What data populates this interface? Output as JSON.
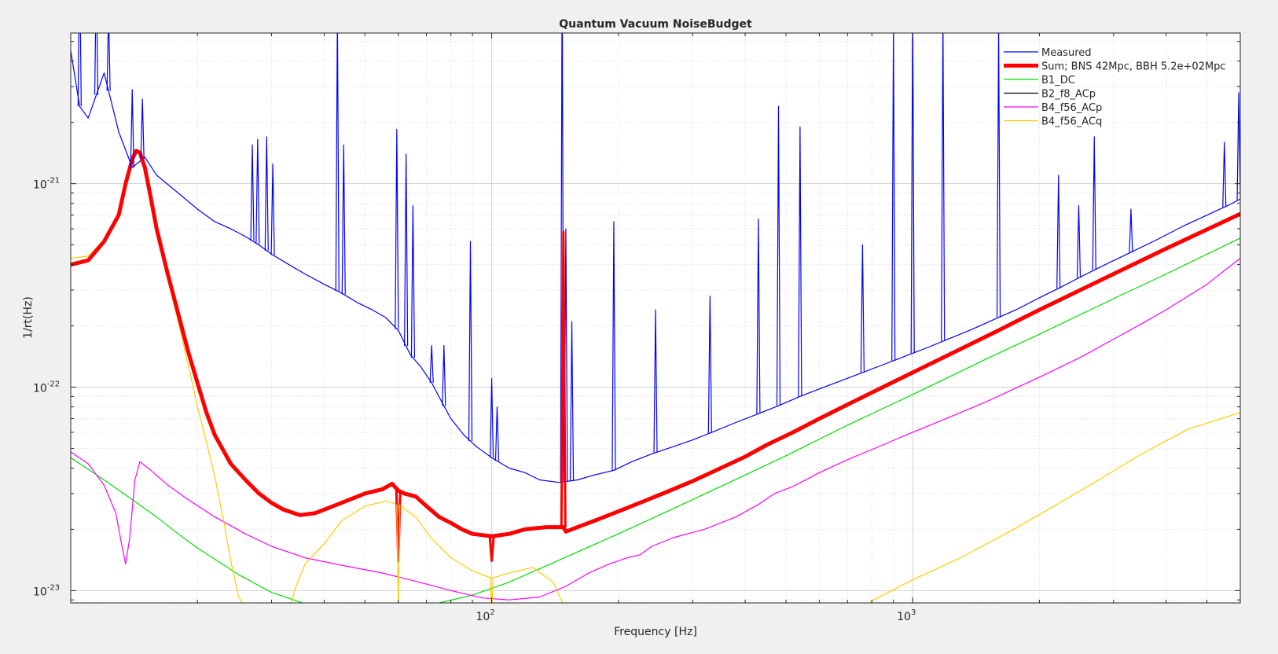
{
  "chart_data": {
    "type": "line",
    "title": "Quantum Vacuum NoiseBudget",
    "xlabel": "Frequency [Hz]",
    "ylabel": "1/rt(Hz)",
    "xscale": "log",
    "yscale": "log",
    "xlim": [
      10,
      6000
    ],
    "ylim": [
      8.7e-24,
      5.5e-21
    ],
    "grid": "on (major and minor)",
    "legend_position": "top-right",
    "x_ticks": [
      {
        "value": 100,
        "base": "10",
        "exp": "2"
      },
      {
        "value": 1000,
        "base": "10",
        "exp": "3"
      }
    ],
    "y_ticks": [
      {
        "value": 1e-21,
        "base": "10",
        "exp": "-21"
      },
      {
        "value": 1e-22,
        "base": "10",
        "exp": "-22"
      },
      {
        "value": 1e-23,
        "base": "10",
        "exp": "-23"
      }
    ],
    "series": [
      {
        "name": "Measured",
        "color": "#0000ff",
        "width": 1.2,
        "points": [
          [
            10,
            4.5e-21
          ],
          [
            10.5,
            2.4e-21
          ],
          [
            11,
            2.1e-21
          ],
          [
            12,
            3.5e-21
          ],
          [
            12.5,
            2.5e-21
          ],
          [
            13,
            1.8e-21
          ],
          [
            14,
            1.2e-21
          ],
          [
            15,
            1.35e-21
          ],
          [
            16,
            1.1e-21
          ],
          [
            18,
            9e-22
          ],
          [
            20,
            7.5e-22
          ],
          [
            22,
            6.5e-22
          ],
          [
            24,
            6e-22
          ],
          [
            26,
            5.5e-22
          ],
          [
            28,
            5e-22
          ],
          [
            30,
            4.5e-22
          ],
          [
            33,
            4e-22
          ],
          [
            36,
            3.6e-22
          ],
          [
            40,
            3.2e-22
          ],
          [
            44,
            2.9e-22
          ],
          [
            48,
            2.6e-22
          ],
          [
            52,
            2.4e-22
          ],
          [
            56,
            2.2e-22
          ],
          [
            60,
            1.9e-22
          ],
          [
            64,
            1.45e-22
          ],
          [
            68,
            1.25e-22
          ],
          [
            72,
            1.05e-22
          ],
          [
            76,
            8.5e-23
          ],
          [
            80,
            7e-23
          ],
          [
            86,
            5.8e-23
          ],
          [
            92,
            5.1e-23
          ],
          [
            100,
            4.5e-23
          ],
          [
            110,
            4e-23
          ],
          [
            120,
            3.8e-23
          ],
          [
            130,
            3.5e-23
          ],
          [
            145,
            3.4e-23
          ],
          [
            160,
            3.5e-23
          ],
          [
            175,
            3.7e-23
          ],
          [
            195,
            3.9e-23
          ],
          [
            215,
            4.3e-23
          ],
          [
            240,
            4.7e-23
          ],
          [
            270,
            5.1e-23
          ],
          [
            300,
            5.5e-23
          ],
          [
            340,
            6.1e-23
          ],
          [
            380,
            6.7e-23
          ],
          [
            430,
            7.4e-23
          ],
          [
            480,
            8.1e-23
          ],
          [
            540,
            9e-23
          ],
          [
            600,
            9.8e-23
          ],
          [
            680,
            1.08e-22
          ],
          [
            760,
            1.18e-22
          ],
          [
            860,
            1.3e-22
          ],
          [
            960,
            1.42e-22
          ],
          [
            1080,
            1.56e-22
          ],
          [
            1220,
            1.73e-22
          ],
          [
            1380,
            1.92e-22
          ],
          [
            1560,
            2.15e-22
          ],
          [
            1760,
            2.4e-22
          ],
          [
            2000,
            2.75e-22
          ],
          [
            2250,
            3.1e-22
          ],
          [
            2550,
            3.55e-22
          ],
          [
            2900,
            4.05e-22
          ],
          [
            3300,
            4.6e-22
          ],
          [
            3800,
            5.3e-22
          ],
          [
            4400,
            6.2e-22
          ],
          [
            5000,
            7e-22
          ],
          [
            5600,
            7.8e-22
          ],
          [
            6000,
            8.4e-22
          ]
        ]
      },
      {
        "name": "Sum; BNS 42Mpc, BBH 5.2e+02Mpc",
        "color": "#ff0000",
        "width": 5,
        "points": [
          [
            10,
            4e-22
          ],
          [
            11,
            4.2e-22
          ],
          [
            12,
            5.2e-22
          ],
          [
            13,
            7e-22
          ],
          [
            13.5,
            1e-21
          ],
          [
            14,
            1.32e-21
          ],
          [
            14.3,
            1.45e-21
          ],
          [
            14.6,
            1.42e-21
          ],
          [
            15,
            1.2e-21
          ],
          [
            15.5,
            8.5e-22
          ],
          [
            16,
            6e-22
          ],
          [
            17,
            3.6e-22
          ],
          [
            18,
            2.3e-22
          ],
          [
            19,
            1.5e-22
          ],
          [
            20,
            1.05e-22
          ],
          [
            21,
            7.5e-23
          ],
          [
            22,
            5.8e-23
          ],
          [
            24,
            4.2e-23
          ],
          [
            26,
            3.5e-23
          ],
          [
            28,
            3e-23
          ],
          [
            30,
            2.7e-23
          ],
          [
            32,
            2.5e-23
          ],
          [
            35,
            2.35e-23
          ],
          [
            38,
            2.4e-23
          ],
          [
            42,
            2.6e-23
          ],
          [
            46,
            2.8e-23
          ],
          [
            50,
            3e-23
          ],
          [
            55,
            3.15e-23
          ],
          [
            58,
            3.35e-23
          ],
          [
            60,
            3.1e-23
          ],
          [
            62,
            3e-23
          ],
          [
            66,
            2.9e-23
          ],
          [
            70,
            2.6e-23
          ],
          [
            75,
            2.3e-23
          ],
          [
            80,
            2.15e-23
          ],
          [
            85,
            2e-23
          ],
          [
            90,
            1.9e-23
          ],
          [
            100,
            1.85e-23
          ],
          [
            110,
            1.9e-23
          ],
          [
            120,
            2e-23
          ],
          [
            135,
            2.05e-23
          ],
          [
            148,
            2.05e-23
          ],
          [
            150,
            1.95e-23
          ],
          [
            160,
            2.05e-23
          ],
          [
            180,
            2.25e-23
          ],
          [
            200,
            2.45e-23
          ],
          [
            230,
            2.75e-23
          ],
          [
            260,
            3.05e-23
          ],
          [
            300,
            3.45e-23
          ],
          [
            350,
            4e-23
          ],
          [
            400,
            4.55e-23
          ],
          [
            450,
            5.2e-23
          ],
          [
            520,
            6e-23
          ],
          [
            600,
            7e-23
          ],
          [
            700,
            8.2e-23
          ],
          [
            800,
            9.4e-23
          ],
          [
            900,
            1.06e-22
          ],
          [
            1000,
            1.18e-22
          ],
          [
            1200,
            1.42e-22
          ],
          [
            1400,
            1.66e-22
          ],
          [
            1600,
            1.9e-22
          ],
          [
            1800,
            2.15e-22
          ],
          [
            2000,
            2.4e-22
          ],
          [
            2500,
            3e-22
          ],
          [
            3000,
            3.6e-22
          ],
          [
            3500,
            4.2e-22
          ],
          [
            4000,
            4.8e-22
          ],
          [
            5000,
            5.95e-22
          ],
          [
            6000,
            7.1e-22
          ]
        ]
      },
      {
        "name": "B1_DC",
        "color": "#00e000",
        "width": 1.2,
        "points": [
          [
            10,
            4.5e-23
          ],
          [
            12,
            3.5e-23
          ],
          [
            14,
            2.8e-23
          ],
          [
            16,
            2.3e-23
          ],
          [
            18,
            1.9e-23
          ],
          [
            20,
            1.62e-23
          ],
          [
            25,
            1.2e-23
          ],
          [
            30,
            9.8e-24
          ],
          [
            40,
            8e-24
          ],
          [
            60,
            8e-24
          ],
          [
            75,
            8.7e-24
          ],
          [
            90,
            9.5e-24
          ],
          [
            110,
            1.1e-23
          ],
          [
            130,
            1.28e-23
          ],
          [
            160,
            1.55e-23
          ],
          [
            200,
            1.9e-23
          ],
          [
            250,
            2.35e-23
          ],
          [
            300,
            2.8e-23
          ],
          [
            400,
            3.7e-23
          ],
          [
            500,
            4.6e-23
          ],
          [
            700,
            6.5e-23
          ],
          [
            1000,
            9.2e-23
          ],
          [
            1500,
            1.38e-22
          ],
          [
            2000,
            1.82e-22
          ],
          [
            3000,
            2.72e-22
          ],
          [
            4000,
            3.6e-22
          ],
          [
            5000,
            4.5e-22
          ],
          [
            6000,
            5.4e-22
          ]
        ]
      },
      {
        "name": "B2_f8_ACp",
        "color": "#000000",
        "width": 1.2,
        "points": []
      },
      {
        "name": "B4_f56_ACp",
        "color": "#ff00ff",
        "width": 1.2,
        "points": [
          [
            10,
            4.8e-23
          ],
          [
            11,
            4.2e-23
          ],
          [
            12,
            3.3e-23
          ],
          [
            12.8,
            2.4e-23
          ],
          [
            13.2,
            1.7e-23
          ],
          [
            13.5,
            1.35e-23
          ],
          [
            13.8,
            1.8e-23
          ],
          [
            14.2,
            3.5e-23
          ],
          [
            14.6,
            4.3e-23
          ],
          [
            15.5,
            3.9e-23
          ],
          [
            17,
            3.3e-23
          ],
          [
            19,
            2.8e-23
          ],
          [
            22,
            2.3e-23
          ],
          [
            26,
            1.9e-23
          ],
          [
            30,
            1.65e-23
          ],
          [
            36,
            1.45e-23
          ],
          [
            45,
            1.32e-23
          ],
          [
            55,
            1.22e-23
          ],
          [
            65,
            1.12e-23
          ],
          [
            80,
            1e-23
          ],
          [
            95,
            9.2e-24
          ],
          [
            110,
            9e-24
          ],
          [
            130,
            9.3e-24
          ],
          [
            150,
            1.05e-23
          ],
          [
            170,
            1.22e-23
          ],
          [
            190,
            1.35e-23
          ],
          [
            210,
            1.45e-23
          ],
          [
            225,
            1.5e-23
          ],
          [
            240,
            1.65e-23
          ],
          [
            270,
            1.82e-23
          ],
          [
            320,
            2e-23
          ],
          [
            380,
            2.3e-23
          ],
          [
            430,
            2.65e-23
          ],
          [
            470,
            3e-23
          ],
          [
            520,
            3.25e-23
          ],
          [
            600,
            3.8e-23
          ],
          [
            700,
            4.4e-23
          ],
          [
            850,
            5.2e-23
          ],
          [
            1000,
            6e-23
          ],
          [
            1200,
            7e-23
          ],
          [
            1500,
            8.5e-23
          ],
          [
            2000,
            1.12e-22
          ],
          [
            2500,
            1.4e-22
          ],
          [
            3000,
            1.72e-22
          ],
          [
            3500,
            2.05e-22
          ],
          [
            4000,
            2.4e-22
          ],
          [
            5000,
            3.2e-22
          ],
          [
            6000,
            4.3e-22
          ]
        ]
      },
      {
        "name": "B4_f56_ACq",
        "color": "#ffcc00",
        "width": 1.2,
        "points": [
          [
            10,
            4.3e-22
          ],
          [
            11,
            4.4e-22
          ],
          [
            12,
            5.3e-22
          ],
          [
            13,
            7e-22
          ],
          [
            13.5,
            1e-21
          ],
          [
            14,
            1.3e-21
          ],
          [
            14.3,
            1.42e-21
          ],
          [
            14.6,
            1.4e-21
          ],
          [
            15,
            1.18e-21
          ],
          [
            15.5,
            8.4e-22
          ],
          [
            16,
            5.9e-22
          ],
          [
            17,
            3.4e-22
          ],
          [
            18,
            2.1e-22
          ],
          [
            19,
            1.3e-22
          ],
          [
            20,
            8e-23
          ],
          [
            21,
            5.4e-23
          ],
          [
            22,
            3.6e-23
          ],
          [
            23,
            2.3e-23
          ],
          [
            24,
            1.4e-23
          ],
          [
            25,
            9.5e-24
          ],
          [
            26,
            8e-24
          ],
          [
            33,
            8e-24
          ],
          [
            34,
            1e-23
          ],
          [
            36,
            1.35e-23
          ],
          [
            40,
            1.7e-23
          ],
          [
            44,
            2.2e-23
          ],
          [
            50,
            2.6e-23
          ],
          [
            56,
            2.75e-23
          ],
          [
            60,
            2.65e-23
          ],
          [
            66,
            2.3e-23
          ],
          [
            72,
            1.8e-23
          ],
          [
            80,
            1.45e-23
          ],
          [
            90,
            1.25e-23
          ],
          [
            100,
            1.15e-23
          ],
          [
            110,
            1.22e-23
          ],
          [
            125,
            1.3e-23
          ],
          [
            140,
            1.1e-23
          ],
          [
            150,
            8e-24
          ],
          [
            760,
            8e-24
          ],
          [
            800,
            8.9e-24
          ],
          [
            1000,
            1.13e-23
          ],
          [
            1300,
            1.45e-23
          ],
          [
            1700,
            1.95e-23
          ],
          [
            2200,
            2.65e-23
          ],
          [
            2800,
            3.55e-23
          ],
          [
            3500,
            4.7e-23
          ],
          [
            4500,
            6.2e-23
          ],
          [
            6000,
            7.5e-23
          ]
        ]
      }
    ],
    "spikes": [
      {
        "series": "Measured",
        "x": [
          10.5,
          11.5,
          12.3,
          14,
          14.8,
          27,
          27.8,
          29.2,
          30.2,
          43,
          44.5,
          59.5,
          62.6,
          65,
          72,
          77,
          89,
          100,
          103,
          147,
          150,
          155,
          195,
          245,
          330,
          430,
          480,
          540,
          760,
          900,
          1000,
          1180,
          1600,
          2220,
          2480,
          2700,
          3300,
          5500,
          5950
        ],
        "y": [
          1.4e-20,
          1.1e-20,
          7e-21,
          2.9e-21,
          2.6e-21,
          1.55e-21,
          1.65e-21,
          1.7e-21,
          1.25e-21,
          7e-21,
          1.55e-21,
          1.85e-21,
          1.4e-21,
          7.8e-22,
          1.6e-22,
          1.6e-22,
          5.2e-22,
          1.1e-22,
          8e-23,
          1.35e-20,
          6e-22,
          2.1e-22,
          6.5e-22,
          2.4e-22,
          2.8e-22,
          6.7e-22,
          2.4e-21,
          1.9e-21,
          5e-22,
          6e-21,
          7.8e-21,
          6.5e-21,
          6e-21,
          1.1e-21,
          7.8e-22,
          1.7e-21,
          7.5e-22,
          1.6e-21,
          2.8e-21
        ]
      },
      {
        "series": "Sum; BNS 42Mpc, BBH 5.2e+02Mpc",
        "x": [
          60,
          100,
          148
        ],
        "y": [
          1.4e-23,
          1.4e-23,
          5.8e-22
        ]
      },
      {
        "series": "B4_f56_ACq",
        "x": [
          60,
          100,
          148
        ],
        "y": [
          8e-24,
          8e-24,
          8e-24
        ]
      }
    ]
  }
}
